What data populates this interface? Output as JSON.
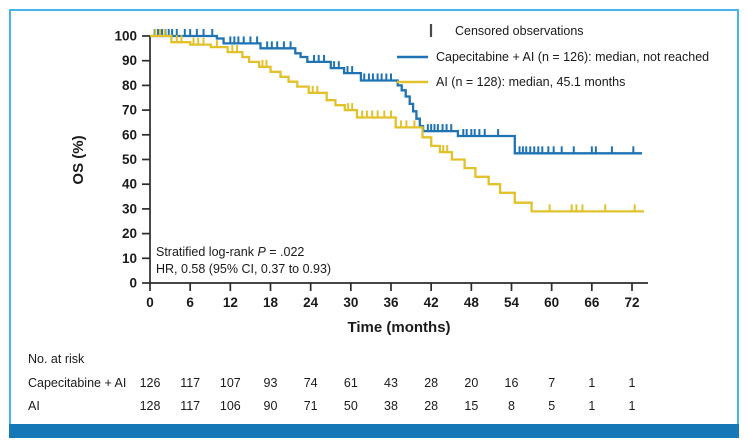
{
  "figure": {
    "frame_color": "#45b5e8",
    "bottom_bar_color": "#1577b5",
    "background": "#ffffff"
  },
  "chart_data": {
    "type": "line",
    "subtype": "kaplan-meier-step",
    "title": "",
    "xlabel": "Time (months)",
    "ylabel": "OS (%)",
    "xlim": [
      0,
      74.5
    ],
    "ylim": [
      0,
      100
    ],
    "xticks": [
      0,
      6,
      12,
      18,
      24,
      30,
      36,
      42,
      48,
      54,
      60,
      66,
      72
    ],
    "yticks": [
      0,
      10,
      20,
      30,
      40,
      50,
      60,
      70,
      80,
      90,
      100
    ],
    "grid": false,
    "legend_position": "top-right",
    "legend": {
      "censored": "Censored observations"
    },
    "annotation": {
      "line1_pre": "Stratified log-rank ",
      "line1_p": "P",
      "line1_post": " = .022",
      "line2": "HR, 0.58 (95% CI, 0.37 to 0.93)"
    },
    "series": [
      {
        "name": "Capecitabine + AI",
        "legend_label": "Capecitabine + AI (n = 126): median, not reached",
        "color": "#1e73b4",
        "steps": [
          [
            0,
            100
          ],
          [
            10,
            99
          ],
          [
            11,
            97
          ],
          [
            16.5,
            95
          ],
          [
            21.7,
            93
          ],
          [
            22.5,
            91.5
          ],
          [
            23.5,
            89.5
          ],
          [
            27,
            87
          ],
          [
            29,
            85
          ],
          [
            31.5,
            82
          ],
          [
            37,
            80
          ],
          [
            37.6,
            78
          ],
          [
            38.2,
            75.5
          ],
          [
            38.8,
            72.5
          ],
          [
            39.3,
            69.5
          ],
          [
            39.8,
            66.5
          ],
          [
            40.3,
            63.5
          ],
          [
            40.8,
            61.5
          ],
          [
            46,
            59.5
          ],
          [
            54.5,
            52.5
          ],
          [
            73.5,
            52.5
          ]
        ],
        "censors": [
          [
            0.7,
            100
          ],
          [
            1.2,
            100
          ],
          [
            1.8,
            100
          ],
          [
            2.3,
            100
          ],
          [
            2.8,
            100
          ],
          [
            3.3,
            100
          ],
          [
            4,
            100
          ],
          [
            5.2,
            100
          ],
          [
            6,
            100
          ],
          [
            7,
            100
          ],
          [
            8,
            100
          ],
          [
            9.3,
            100
          ],
          [
            12,
            97
          ],
          [
            12.6,
            97
          ],
          [
            13.2,
            97
          ],
          [
            14,
            97
          ],
          [
            15,
            97
          ],
          [
            16,
            97
          ],
          [
            17.5,
            95
          ],
          [
            18.2,
            95
          ],
          [
            19,
            95
          ],
          [
            20,
            95
          ],
          [
            21,
            95
          ],
          [
            24.5,
            89.5
          ],
          [
            25.2,
            89.5
          ],
          [
            26,
            89.5
          ],
          [
            27.5,
            87
          ],
          [
            28.2,
            87
          ],
          [
            29.5,
            85
          ],
          [
            30.2,
            85
          ],
          [
            32,
            82
          ],
          [
            32.7,
            82
          ],
          [
            33.3,
            82
          ],
          [
            34,
            82
          ],
          [
            34.6,
            82
          ],
          [
            35.3,
            82
          ],
          [
            36,
            82
          ],
          [
            41.5,
            61.5
          ],
          [
            42,
            61.5
          ],
          [
            42.5,
            61.5
          ],
          [
            43,
            61.5
          ],
          [
            43.7,
            61.5
          ],
          [
            44.3,
            61.5
          ],
          [
            45,
            61.5
          ],
          [
            46.8,
            59.5
          ],
          [
            47.3,
            59.5
          ],
          [
            48,
            59.5
          ],
          [
            48.5,
            59.5
          ],
          [
            49.2,
            59.5
          ],
          [
            50,
            59.5
          ],
          [
            52,
            59.5
          ],
          [
            55.2,
            52.5
          ],
          [
            55.7,
            52.5
          ],
          [
            56.2,
            52.5
          ],
          [
            56.8,
            52.5
          ],
          [
            57.4,
            52.5
          ],
          [
            58,
            52.5
          ],
          [
            58.6,
            52.5
          ],
          [
            59.5,
            52.5
          ],
          [
            60.3,
            52.5
          ],
          [
            61.5,
            52.5
          ],
          [
            63.3,
            52.5
          ],
          [
            66,
            52.5
          ],
          [
            66.6,
            52.5
          ],
          [
            69,
            52.5
          ],
          [
            72.2,
            52.5
          ]
        ]
      },
      {
        "name": "AI",
        "legend_label": "AI (n = 128): median, 45.1 months",
        "color": "#e2c12b",
        "steps": [
          [
            0,
            100
          ],
          [
            3.2,
            97.5
          ],
          [
            6,
            96.5
          ],
          [
            9.1,
            95.5
          ],
          [
            11.6,
            93.5
          ],
          [
            13.8,
            91.5
          ],
          [
            14.8,
            89.5
          ],
          [
            16.3,
            87.5
          ],
          [
            18,
            85.5
          ],
          [
            19.5,
            83.5
          ],
          [
            20.7,
            81.5
          ],
          [
            22,
            79.5
          ],
          [
            23.7,
            77
          ],
          [
            26.4,
            74
          ],
          [
            27.7,
            72
          ],
          [
            29.1,
            70
          ],
          [
            30.9,
            67
          ],
          [
            36.7,
            63
          ],
          [
            40.7,
            59
          ],
          [
            42,
            55.5
          ],
          [
            43.3,
            53
          ],
          [
            45.1,
            50
          ],
          [
            47,
            46.5
          ],
          [
            48.6,
            43
          ],
          [
            50.6,
            40
          ],
          [
            52.3,
            36.5
          ],
          [
            54.5,
            32.5
          ],
          [
            57,
            29
          ],
          [
            73.8,
            29
          ]
        ],
        "censors": [
          [
            0.8,
            100
          ],
          [
            1.5,
            100
          ],
          [
            2.2,
            100
          ],
          [
            4,
            97.5
          ],
          [
            4.7,
            97.5
          ],
          [
            6.5,
            96.5
          ],
          [
            7.2,
            96.5
          ],
          [
            8,
            96.5
          ],
          [
            10,
            95.5
          ],
          [
            12.3,
            93.5
          ],
          [
            13,
            93.5
          ],
          [
            16.8,
            87.5
          ],
          [
            17.4,
            87.5
          ],
          [
            24.3,
            77
          ],
          [
            25,
            77
          ],
          [
            29.6,
            70
          ],
          [
            30.2,
            70
          ],
          [
            31.7,
            67
          ],
          [
            32.4,
            67
          ],
          [
            33.2,
            67
          ],
          [
            34,
            67
          ],
          [
            35,
            67
          ],
          [
            36,
            67
          ],
          [
            37.5,
            63
          ],
          [
            38.3,
            63
          ],
          [
            39.5,
            63
          ],
          [
            43.8,
            53
          ],
          [
            44.4,
            53
          ],
          [
            59.7,
            29
          ],
          [
            63,
            29
          ],
          [
            63.7,
            29
          ],
          [
            64.6,
            29
          ],
          [
            68,
            29
          ],
          [
            72.4,
            29
          ]
        ]
      }
    ]
  },
  "risk_table": {
    "header": "No. at risk",
    "time_points": [
      0,
      6,
      12,
      18,
      24,
      30,
      36,
      42,
      48,
      54,
      60,
      66,
      72
    ],
    "rows": [
      {
        "label": "Capecitabine + AI",
        "counts": [
          126,
          117,
          107,
          93,
          74,
          61,
          43,
          28,
          20,
          16,
          7,
          1,
          1
        ]
      },
      {
        "label": "AI",
        "counts": [
          128,
          117,
          106,
          90,
          71,
          50,
          38,
          28,
          15,
          8,
          5,
          1,
          1
        ]
      }
    ]
  },
  "colors": {
    "censor_symbol": "#4a4a4a",
    "axis": "#2b2b2b",
    "text": "#1a1a1a"
  }
}
